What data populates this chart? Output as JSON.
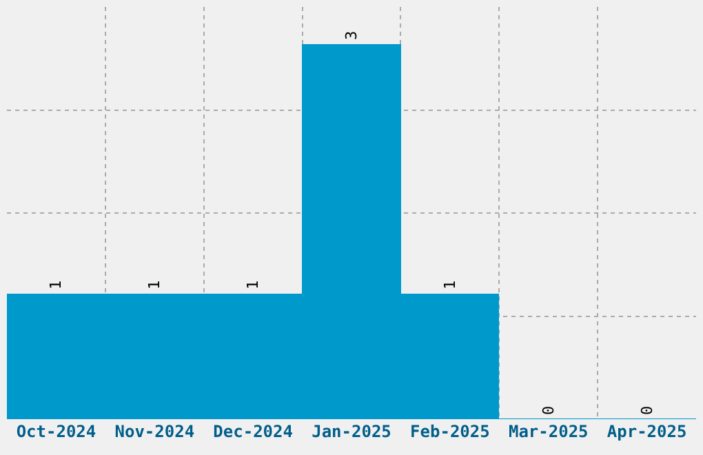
{
  "chart_data": {
    "type": "bar",
    "categories": [
      "Oct-2024",
      "Nov-2024",
      "Dec-2024",
      "Jan-2025",
      "Feb-2025",
      "Mar-2025",
      "Apr-2025"
    ],
    "values": [
      1,
      1,
      1,
      3,
      1,
      0,
      0
    ],
    "color": "#0099cc",
    "data_labels": true,
    "ylim": [
      0,
      3.3
    ],
    "yticks": [
      {
        "value": 0.82,
        "label": null
      },
      {
        "value": 1.65,
        "label": null
      },
      {
        "value": 2.47,
        "label": null
      }
    ],
    "tick_labels": "x",
    "grid": true
  }
}
